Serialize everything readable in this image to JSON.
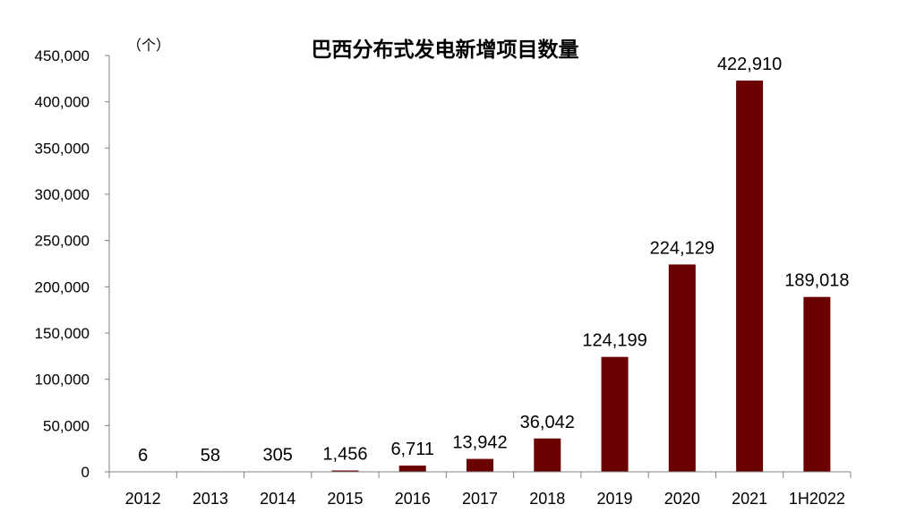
{
  "chart_data": {
    "type": "bar",
    "title": "巴西分布式发电新增项目数量",
    "unit_label": "（个）",
    "categories": [
      "2012",
      "2013",
      "2014",
      "2015",
      "2016",
      "2017",
      "2018",
      "2019",
      "2020",
      "2021",
      "1H2022"
    ],
    "values": [
      6,
      58,
      305,
      1456,
      6711,
      13942,
      36042,
      124199,
      224129,
      422910,
      189018
    ],
    "value_labels": [
      "6",
      "58",
      "305",
      "1,456",
      "6,711",
      "13,942",
      "36,042",
      "124,199",
      "224,129",
      "422,910",
      "189,018"
    ],
    "ylim": [
      0,
      450000
    ],
    "yticks": [
      0,
      50000,
      100000,
      150000,
      200000,
      250000,
      300000,
      350000,
      400000,
      450000
    ],
    "ytick_labels": [
      "0",
      "50,000",
      "100,000",
      "150,000",
      "200,000",
      "250,000",
      "300,000",
      "350,000",
      "400,000",
      "450,000"
    ],
    "bar_color": "#6b0000",
    "axis_color": "#808080",
    "grid": false,
    "legend": "none"
  }
}
